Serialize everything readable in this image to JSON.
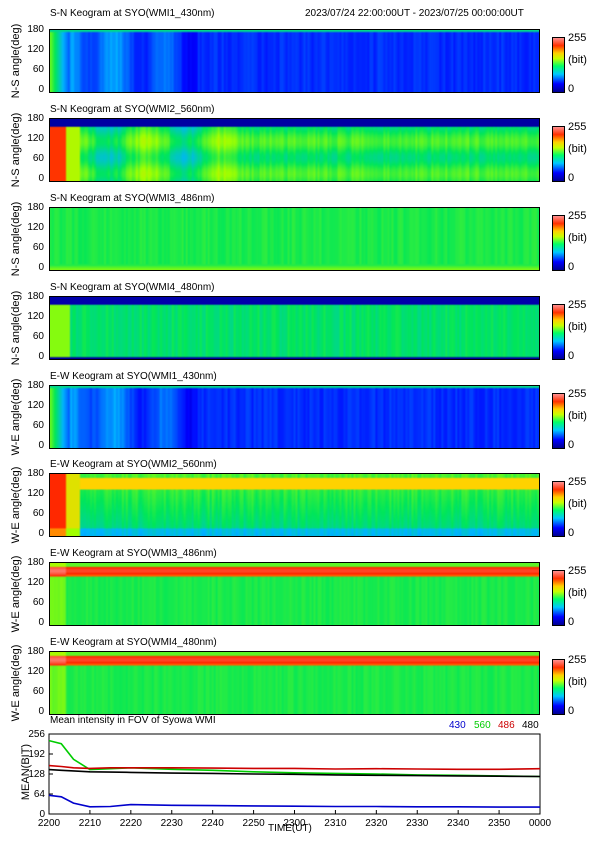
{
  "header": {
    "title": "S-N Keogram at SYO(WMI1_430nm)",
    "time_range": "2023/07/24 22:00:00UT - 2023/07/25 00:00:00UT"
  },
  "panels": [
    {
      "title": "S-N Keogram at SYO(WMI1_430nm)",
      "ylabel": "N-S angle(deg)",
      "pattern": "blue"
    },
    {
      "title": "S-N Keogram at SYO(WMI2_560nm)",
      "ylabel": "N-S angle(deg)",
      "pattern": "green_ns"
    },
    {
      "title": "S-N Keogram at SYO(WMI3_486nm)",
      "ylabel": "N-S angle(deg)",
      "pattern": "green_flat"
    },
    {
      "title": "S-N Keogram at SYO(WMI4_480nm)",
      "ylabel": "N-S angle(deg)",
      "pattern": "green_top"
    },
    {
      "title": "E-W Keogram at SYO(WMI1_430nm)",
      "ylabel": "W-E angle(deg)",
      "pattern": "blue"
    },
    {
      "title": "E-W Keogram at SYO(WMI2_560nm)",
      "ylabel": "W-E angle(deg)",
      "pattern": "green_ew"
    },
    {
      "title": "E-W Keogram at SYO(WMI3_486nm)",
      "ylabel": "W-E angle(deg)",
      "pattern": "red_band"
    },
    {
      "title": "E-W Keogram at SYO(WMI4_480nm)",
      "ylabel": "W-E angle(deg)",
      "pattern": "red_band"
    }
  ],
  "y_ticks": [
    "180",
    "120",
    "60",
    "0"
  ],
  "colorbar": {
    "max": "255",
    "unit": "(bit)",
    "min": "0"
  },
  "chart_data": {
    "type": "line",
    "title": "Mean intensity in FOV of Syowa WMI",
    "xlabel": "TIME(UT)",
    "ylabel": "MEAN(BIT)",
    "x_ticks": [
      "2200",
      "2210",
      "2220",
      "2230",
      "2240",
      "2250",
      "2300",
      "2310",
      "2320",
      "2330",
      "2340",
      "2350",
      "0000"
    ],
    "y_ticks": [
      "256",
      "192",
      "128",
      "64",
      "0"
    ],
    "ylim": [
      0,
      256
    ],
    "x_minutes": [
      0,
      3,
      6,
      10,
      15,
      20,
      30,
      40,
      50,
      60,
      70,
      80,
      90,
      100,
      110,
      120
    ],
    "series": [
      {
        "name": "430",
        "color": "#0000cc",
        "values": [
          60,
          55,
          35,
          23,
          24,
          30,
          28,
          27,
          26,
          25,
          24,
          24,
          23,
          23,
          22,
          22
        ]
      },
      {
        "name": "560",
        "color": "#00cc00",
        "values": [
          235,
          225,
          175,
          142,
          145,
          148,
          143,
          140,
          135,
          132,
          130,
          128,
          125,
          124,
          122,
          120
        ]
      },
      {
        "name": "486",
        "color": "#cc0000",
        "values": [
          155,
          152,
          148,
          146,
          148,
          148,
          148,
          147,
          146,
          146,
          144,
          145,
          144,
          143,
          143,
          145
        ]
      },
      {
        "name": "480",
        "color": "#000000",
        "values": [
          142,
          140,
          138,
          135,
          134,
          133,
          131,
          130,
          128,
          127,
          125,
          124,
          123,
          122,
          121,
          120
        ]
      }
    ]
  }
}
